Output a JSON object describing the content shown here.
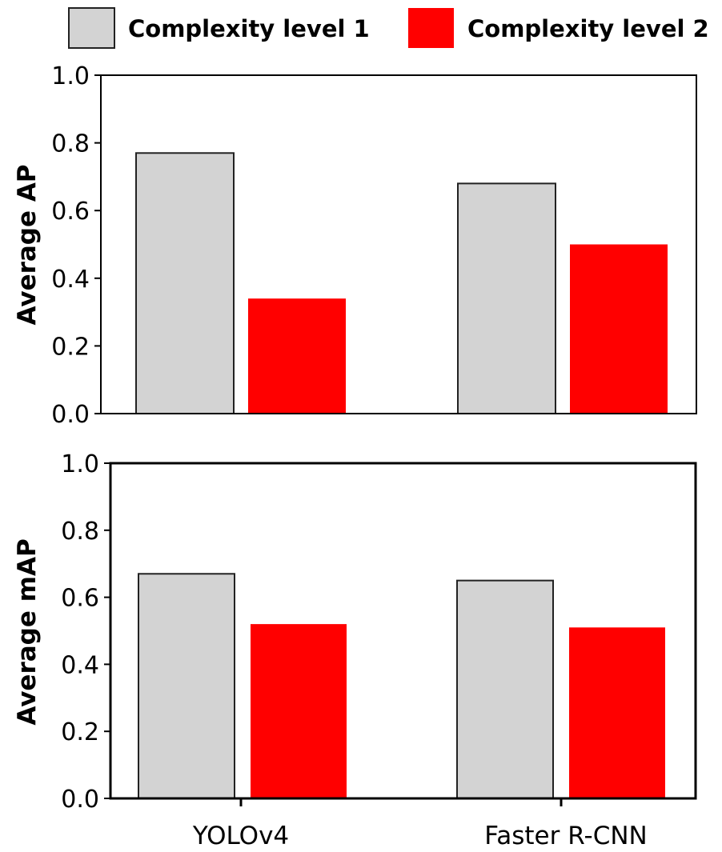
{
  "colors": {
    "level1": "#d3d3d3",
    "level2": "#ff0000",
    "edge": "#222222"
  },
  "chart_data": {
    "type": "bar",
    "categories": [
      "YOLOv4",
      "Faster R-CNN"
    ],
    "legend": {
      "placement": "top",
      "entries": [
        "Complexity level 1",
        "Complexity level 2"
      ]
    },
    "panels": [
      {
        "ylabel": "Average AP",
        "ylim": [
          0,
          1.0
        ],
        "yticks": [
          "0.0",
          "0.2",
          "0.4",
          "0.6",
          "0.8",
          "1.0"
        ],
        "series": [
          {
            "name": "Complexity level 1",
            "values": [
              0.77,
              0.68
            ]
          },
          {
            "name": "Complexity level 2",
            "values": [
              0.34,
              0.5
            ]
          }
        ]
      },
      {
        "ylabel": "Average mAP",
        "ylim": [
          0,
          1.0
        ],
        "yticks": [
          "0.0",
          "0.2",
          "0.4",
          "0.6",
          "0.8",
          "1.0"
        ],
        "series": [
          {
            "name": "Complexity level 1",
            "values": [
              0.67,
              0.65
            ]
          },
          {
            "name": "Complexity level 2",
            "values": [
              0.52,
              0.51
            ]
          }
        ]
      }
    ]
  }
}
